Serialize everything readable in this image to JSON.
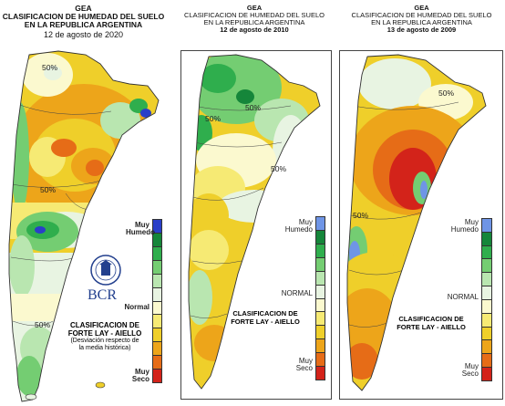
{
  "panels": [
    {
      "title1": "GEA",
      "title2": "CLASIFICACION DE HUMEDAD DEL SUELO",
      "title3": "EN LA REPUBLICA ARGENTINA",
      "date": "12 de agosto de 2020",
      "legend_top": "Muy Humedo",
      "legend_mid": "Normal",
      "legend_bottom_1": "Muy",
      "legend_bottom_2": "Seco",
      "note1": "CLASIFICACION DE",
      "note2": "FORTE LAY - AIELLO",
      "note3": "(Desviación respecto de",
      "note4": "la media histórica)",
      "logo_text": "BCR",
      "contour_labels": [
        "50%",
        "50%",
        "50%"
      ]
    },
    {
      "title1": "GEA",
      "title2": "CLASIFICACION DE HUMEDAD DEL SUELO",
      "title3": "EN LA REPUBLICA ARGENTINA",
      "date": "12 de agosto de 2010",
      "legend_top": "Muy Humedo",
      "legend_mid": "NORMAL",
      "legend_bottom_1": "Muy",
      "legend_bottom_2": "Seco",
      "note1": "CLASIFICACION DE",
      "note2": "FORTE LAY - AIELLO",
      "contour_labels": [
        "50%",
        "50%",
        "50%"
      ]
    },
    {
      "title1": "GEA",
      "title2": "CLASIFICACION DE HUMEDAD DEL SUELO",
      "title3": "EN LA REPUBLICA ARGENTINA",
      "date": "13 de agosto de 2009",
      "legend_top": "Muy Humedo",
      "legend_mid": "NORMAL",
      "legend_bottom_1": "Muy",
      "legend_bottom_2": "Seco",
      "note1": "CLASIFICACION DE",
      "note2": "FORTE LAY - AIELLO",
      "contour_labels": [
        "50%",
        "50%"
      ]
    }
  ],
  "legend_colors": [
    "#2a3fc8",
    "#15863a",
    "#2fae4d",
    "#74cd72",
    "#b9e6b0",
    "#e8f4e2",
    "#fbf9cf",
    "#f6ea74",
    "#efcf2a",
    "#eda51a",
    "#e66c17",
    "#d3231a"
  ]
}
